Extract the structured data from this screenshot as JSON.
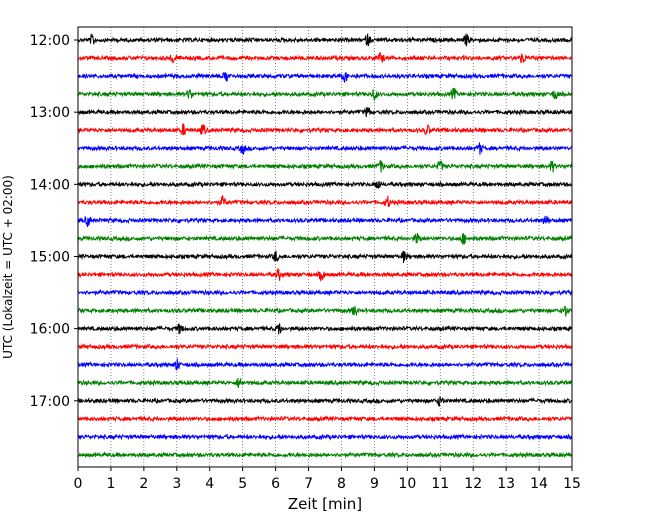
{
  "chart_data": {
    "type": "line",
    "title": "",
    "xlabel": "Zeit  [min]",
    "ylabel": "UTC (Lokalzeit = UTC + 02:00)",
    "xlim": [
      0,
      15
    ],
    "x_ticks": [
      "0",
      "1",
      "2",
      "3",
      "4",
      "5",
      "6",
      "7",
      "8",
      "9",
      "10",
      "11",
      "12",
      "13",
      "14",
      "15"
    ],
    "y_ticks": [
      "12:00",
      "13:00",
      "14:00",
      "15:00",
      "16:00",
      "17:00"
    ],
    "grid": "vertical dotted lines at each minute",
    "trace_interval_min": 15,
    "color_cycle": [
      "#000000",
      "#ff0000",
      "#0000ff",
      "#008000"
    ],
    "traces": [
      {
        "start": "12:00",
        "color": "#000000",
        "events": [
          0.45,
          8.8,
          11.8
        ]
      },
      {
        "start": "12:15",
        "color": "#ff0000",
        "events": [
          2.9,
          9.2,
          13.5
        ]
      },
      {
        "start": "12:30",
        "color": "#0000ff",
        "events": [
          4.5,
          8.1
        ]
      },
      {
        "start": "12:45",
        "color": "#008000",
        "events": [
          3.4,
          9.0,
          11.4,
          14.5
        ]
      },
      {
        "start": "13:00",
        "color": "#000000",
        "events": [
          8.8
        ]
      },
      {
        "start": "13:15",
        "color": "#ff0000",
        "events": [
          3.2,
          3.8,
          10.6
        ]
      },
      {
        "start": "13:30",
        "color": "#0000ff",
        "events": [
          5.0,
          12.2
        ]
      },
      {
        "start": "13:45",
        "color": "#008000",
        "events": [
          9.2,
          11.0,
          14.4
        ]
      },
      {
        "start": "14:00",
        "color": "#000000",
        "events": [
          9.1
        ]
      },
      {
        "start": "14:15",
        "color": "#ff0000",
        "events": [
          4.4,
          9.4
        ]
      },
      {
        "start": "14:30",
        "color": "#0000ff",
        "events": [
          0.3,
          14.2
        ]
      },
      {
        "start": "14:45",
        "color": "#008000",
        "events": [
          10.3,
          11.7
        ]
      },
      {
        "start": "15:00",
        "color": "#000000",
        "events": [
          6.0,
          9.9
        ]
      },
      {
        "start": "15:15",
        "color": "#ff0000",
        "events": [
          6.1,
          7.4
        ]
      },
      {
        "start": "15:30",
        "color": "#0000ff",
        "events": []
      },
      {
        "start": "15:45",
        "color": "#008000",
        "events": [
          8.4,
          14.8
        ]
      },
      {
        "start": "16:00",
        "color": "#000000",
        "events": [
          3.1,
          6.1
        ]
      },
      {
        "start": "16:15",
        "color": "#ff0000",
        "events": []
      },
      {
        "start": "16:30",
        "color": "#0000ff",
        "events": [
          3.0
        ]
      },
      {
        "start": "16:45",
        "color": "#008000",
        "events": [
          4.9
        ]
      },
      {
        "start": "17:00",
        "color": "#000000",
        "events": [
          11.0
        ]
      },
      {
        "start": "17:15",
        "color": "#ff0000",
        "events": []
      },
      {
        "start": "17:30",
        "color": "#0000ff",
        "events": []
      },
      {
        "start": "17:45",
        "color": "#008000",
        "events": []
      }
    ]
  }
}
